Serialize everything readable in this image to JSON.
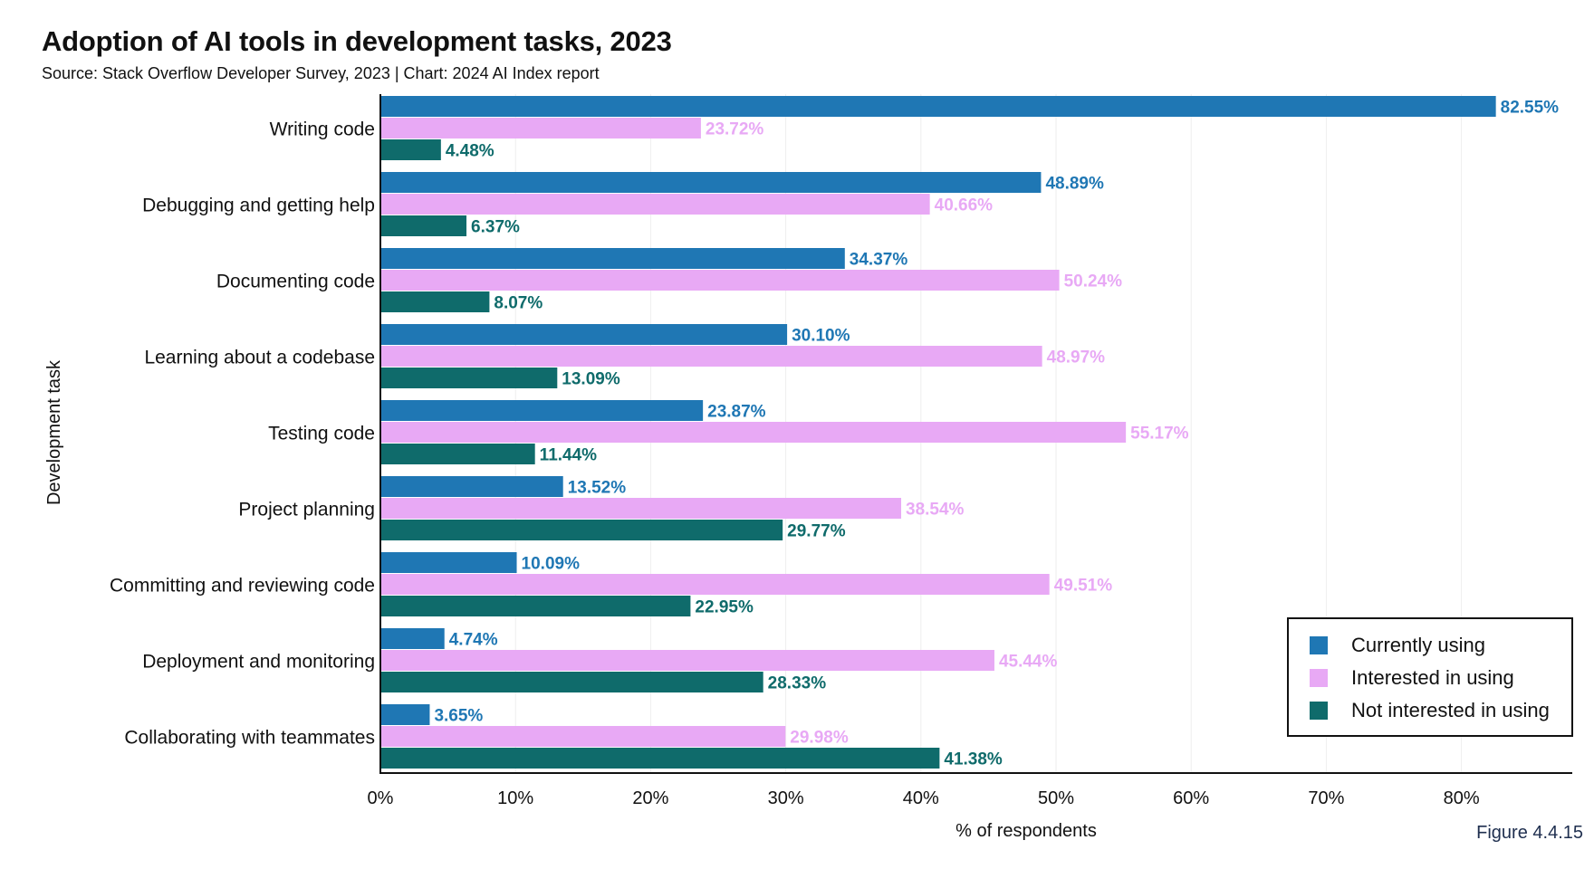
{
  "header": {
    "title": "Adoption of AI tools in development tasks, 2023",
    "subtitle": "Source: Stack Overflow Developer Survey, 2023 | Chart: 2024 AI Index report"
  },
  "figure_label": "Figure 4.4.15",
  "colors": {
    "currently_using": "#1f77b4",
    "interested_in_using": "#e8a9f5",
    "not_interested_in_using": "#0f6b6b",
    "grid": "#eeeeee"
  },
  "chart_data": {
    "type": "bar",
    "orientation": "horizontal",
    "title": "Adoption of AI tools in development tasks, 2023",
    "subtitle": "Source: Stack Overflow Developer Survey, 2023 | Chart: 2024 AI Index report",
    "xlabel": "% of respondents",
    "ylabel": "Development task",
    "xlim": [
      0,
      88
    ],
    "xticks": [
      0,
      10,
      20,
      30,
      40,
      50,
      60,
      70,
      80
    ],
    "xtick_labels": [
      "0%",
      "10%",
      "20%",
      "30%",
      "40%",
      "50%",
      "60%",
      "70%",
      "80%"
    ],
    "grid": "vertical",
    "legend_position": "bottom-right",
    "categories": [
      "Writing code",
      "Debugging and getting help",
      "Documenting code",
      "Learning about a codebase",
      "Testing code",
      "Project planning",
      "Committing and reviewing code",
      "Deployment and monitoring",
      "Collaborating with teammates"
    ],
    "series": [
      {
        "name": "Currently using",
        "values": [
          82.55,
          48.89,
          34.37,
          30.1,
          23.87,
          13.52,
          10.09,
          4.74,
          3.65
        ],
        "labels": [
          "82.55%",
          "48.89%",
          "34.37%",
          "30.10%",
          "23.87%",
          "13.52%",
          "10.09%",
          "4.74%",
          "3.65%"
        ]
      },
      {
        "name": "Interested in using",
        "values": [
          23.72,
          40.66,
          50.24,
          48.97,
          55.17,
          38.54,
          49.51,
          45.44,
          29.98
        ],
        "labels": [
          "23.72%",
          "40.66%",
          "50.24%",
          "48.97%",
          "55.17%",
          "38.54%",
          "49.51%",
          "45.44%",
          "29.98%"
        ]
      },
      {
        "name": "Not interested in using",
        "values": [
          4.48,
          6.37,
          8.07,
          13.09,
          11.44,
          29.77,
          22.95,
          28.33,
          41.38
        ],
        "labels": [
          "4.48%",
          "6.37%",
          "8.07%",
          "13.09%",
          "11.44%",
          "29.77%",
          "22.95%",
          "28.33%",
          "41.38%"
        ]
      }
    ]
  }
}
